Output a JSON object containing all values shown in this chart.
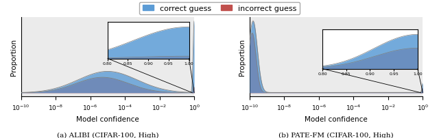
{
  "blue_color": "#5B9BD5",
  "red_color": "#C0504D",
  "edge_color": "#7f7f7f",
  "bg_color": "#EBEBEB",
  "title_a": "(a) ALIBI (CIFAR-100, High)",
  "title_b": "(b) PATE-FM (CIFAR-100, High)",
  "ylabel": "Proportion",
  "xlabel": "Model confidence",
  "legend_correct": "correct guess",
  "legend_incorrect": "incorrect guess",
  "xmin": 1e-10,
  "xmax": 1.0
}
